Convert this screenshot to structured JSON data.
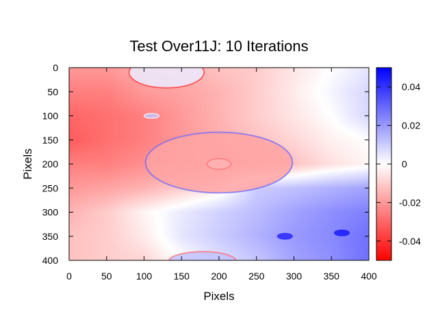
{
  "chart_data": {
    "type": "heatmap",
    "title": "Test Over11J: 10 Iterations",
    "xlabel": "Pixels",
    "ylabel": "Pixels",
    "xlim": [
      0,
      400
    ],
    "ylim": [
      400,
      0
    ],
    "xticks": [
      0,
      50,
      100,
      150,
      200,
      250,
      300,
      350,
      400
    ],
    "yticks": [
      0,
      50,
      100,
      150,
      200,
      250,
      300,
      350,
      400
    ],
    "colorbar": {
      "range": [
        -0.05,
        0.05
      ],
      "ticks": [
        "0.04",
        "0.02",
        "0",
        "-0.02",
        "-0.04"
      ],
      "tick_values": [
        0.04,
        0.02,
        0,
        -0.02,
        -0.04
      ],
      "low_color": "#ff0000",
      "mid_color": "#ffffff",
      "high_color": "#0000ff"
    },
    "grid_x": [
      0,
      50,
      100,
      150,
      200,
      250,
      300,
      350,
      400
    ],
    "grid_y": [
      0,
      50,
      100,
      150,
      200,
      250,
      300,
      350,
      400
    ],
    "values": [
      [
        -0.02,
        -0.02,
        -0.016,
        -0.015,
        -0.012,
        -0.01,
        -0.005,
        0.0,
        0.005
      ],
      [
        -0.025,
        -0.025,
        -0.02,
        -0.018,
        -0.015,
        -0.01,
        -0.004,
        0.002,
        0.008
      ],
      [
        -0.03,
        -0.028,
        -0.025,
        -0.02,
        -0.015,
        -0.01,
        -0.005,
        0.0,
        0.008
      ],
      [
        -0.032,
        -0.028,
        -0.025,
        -0.02,
        -0.016,
        -0.012,
        -0.008,
        -0.003,
        0.0
      ],
      [
        -0.025,
        -0.025,
        -0.022,
        -0.02,
        -0.018,
        -0.015,
        -0.012,
        -0.006,
        -0.002
      ],
      [
        -0.02,
        -0.018,
        -0.015,
        -0.01,
        -0.004,
        0.01,
        0.012,
        0.015,
        0.018
      ],
      [
        -0.015,
        -0.01,
        -0.002,
        0.004,
        0.009,
        0.013,
        0.018,
        0.022,
        0.025
      ],
      [
        -0.012,
        -0.01,
        -0.004,
        0.005,
        0.01,
        0.015,
        0.02,
        0.023,
        0.028
      ],
      [
        -0.012,
        -0.01,
        -0.008,
        0.0,
        0.006,
        0.011,
        0.018,
        0.022,
        0.028
      ]
    ],
    "features": [
      {
        "name": "top-circle",
        "cx": 130,
        "cy": 10,
        "rx": 50,
        "ry": 32,
        "inner": 0.004,
        "rim": -0.04
      },
      {
        "name": "small-circle",
        "cx": 110,
        "cy": 100,
        "rx": 10,
        "ry": 5,
        "inner": 0.012,
        "rim": 0.0
      },
      {
        "name": "large-ellipse",
        "cx": 200,
        "cy": 197,
        "rx": 98,
        "ry": 63,
        "inner": -0.018,
        "rim": 0.03
      },
      {
        "name": "center-circle",
        "cx": 200,
        "cy": 200,
        "rx": 16,
        "ry": 11,
        "inner": -0.015,
        "rim": -0.03
      },
      {
        "name": "blue-dot-1",
        "cx": 288,
        "cy": 350,
        "rx": 10,
        "ry": 6,
        "inner": 0.042,
        "rim": 0.042
      },
      {
        "name": "blue-dot-2",
        "cx": 364,
        "cy": 343,
        "rx": 10,
        "ry": 6,
        "inner": 0.045,
        "rim": 0.045
      },
      {
        "name": "bottom-circle",
        "cx": 178,
        "cy": 402,
        "rx": 45,
        "ry": 20,
        "inner": 0.012,
        "rim": -0.03
      }
    ]
  }
}
